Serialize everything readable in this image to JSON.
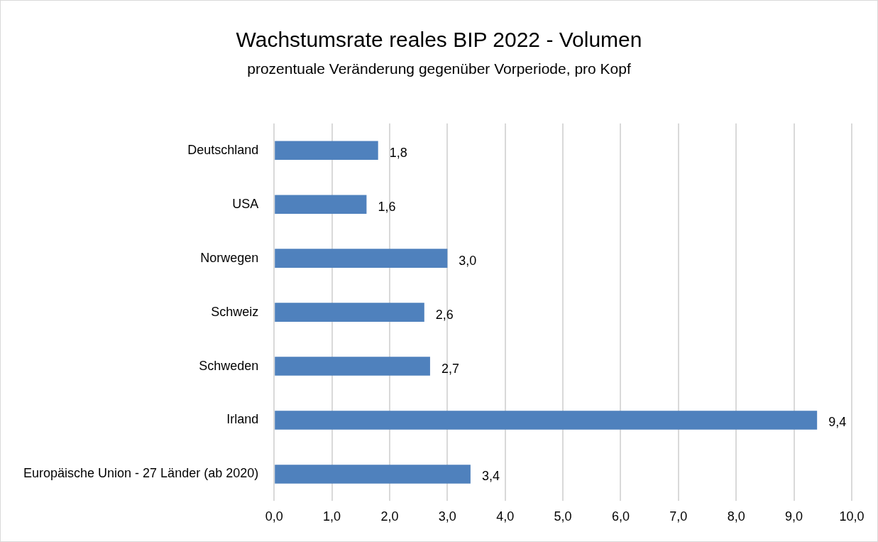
{
  "chart_data": {
    "type": "bar",
    "orientation": "horizontal",
    "title": "Wachstumsrate reales BIP 2022 - Volumen",
    "subtitle": "prozentuale Veränderung gegenüber Vorperiode, pro Kopf",
    "categories": [
      "Deutschland",
      "USA",
      "Norwegen",
      "Schweiz",
      "Schweden",
      "Irland",
      "Europäische Union - 27 Länder (ab 2020)"
    ],
    "values": [
      1.8,
      1.6,
      3.0,
      2.6,
      2.7,
      9.4,
      3.4
    ],
    "value_labels": [
      "1,8",
      "1,6",
      "3,0",
      "2,6",
      "2,7",
      "9,4",
      "3,4"
    ],
    "color": "#4f81bd",
    "xlim": [
      0,
      10
    ],
    "xticks": [
      {
        "value": 0,
        "label": "0,0"
      },
      {
        "value": 1,
        "label": "1,0"
      },
      {
        "value": 2,
        "label": "2,0"
      },
      {
        "value": 3,
        "label": "3,0"
      },
      {
        "value": 4,
        "label": "4,0"
      },
      {
        "value": 5,
        "label": "5,0"
      },
      {
        "value": 6,
        "label": "6,0"
      },
      {
        "value": 7,
        "label": "7,0"
      },
      {
        "value": 8,
        "label": "8,0"
      },
      {
        "value": 9,
        "label": "9,0"
      },
      {
        "value": 10,
        "label": "10,0"
      }
    ],
    "grid": "x",
    "legend": false
  }
}
